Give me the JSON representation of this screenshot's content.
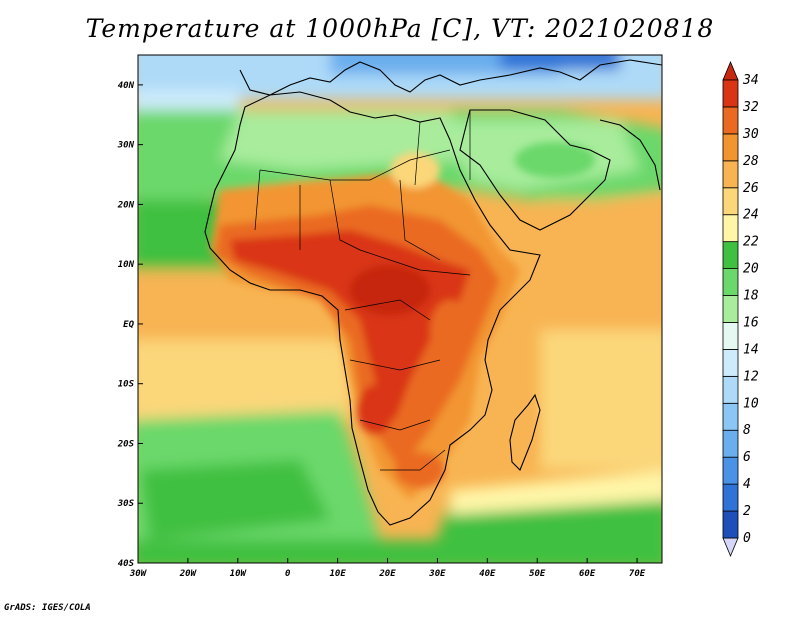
{
  "title": "Temperature at 1000hPa [C], VT: 2021020818",
  "credit": "GrADS: IGES/COLA",
  "map": {
    "lon_range": [
      -30,
      75
    ],
    "lat_range": [
      -40,
      45
    ],
    "lon_ticks": [
      {
        "lon": -30,
        "label": "30W"
      },
      {
        "lon": -20,
        "label": "20W"
      },
      {
        "lon": -10,
        "label": "10W"
      },
      {
        "lon": 0,
        "label": "0"
      },
      {
        "lon": 10,
        "label": "10E"
      },
      {
        "lon": 20,
        "label": "20E"
      },
      {
        "lon": 30,
        "label": "30E"
      },
      {
        "lon": 40,
        "label": "40E"
      },
      {
        "lon": 50,
        "label": "50E"
      },
      {
        "lon": 60,
        "label": "60E"
      },
      {
        "lon": 70,
        "label": "70E"
      }
    ],
    "lat_ticks": [
      {
        "lat": 40,
        "label": "40N"
      },
      {
        "lat": 30,
        "label": "30N"
      },
      {
        "lat": 20,
        "label": "20N"
      },
      {
        "lat": 10,
        "label": "10N"
      },
      {
        "lat": 0,
        "label": "EQ"
      },
      {
        "lat": -10,
        "label": "10S"
      },
      {
        "lat": -20,
        "label": "20S"
      },
      {
        "lat": -30,
        "label": "30S"
      },
      {
        "lat": -40,
        "label": "40S"
      }
    ]
  },
  "colorbar": {
    "units": "C",
    "levels": [
      {
        "value": "0",
        "color": "#1b2a80"
      },
      {
        "value": "2",
        "color": "#1f4fb8"
      },
      {
        "value": "4",
        "color": "#2f73d6"
      },
      {
        "value": "6",
        "color": "#4a92e6"
      },
      {
        "value": "8",
        "color": "#6aaeee"
      },
      {
        "value": "10",
        "color": "#8cc6f4"
      },
      {
        "value": "12",
        "color": "#aedaf8"
      },
      {
        "value": "14",
        "color": "#cdebfb"
      },
      {
        "value": "16",
        "color": "#e6f8f2"
      },
      {
        "value": "18",
        "color": "#a8ec9c"
      },
      {
        "value": "20",
        "color": "#6ad86a"
      },
      {
        "value": "22",
        "color": "#3fc040"
      },
      {
        "value": "24",
        "color": "#fff6a8"
      },
      {
        "value": "26",
        "color": "#fbd77a"
      },
      {
        "value": "28",
        "color": "#f8b452"
      },
      {
        "value": "30",
        "color": "#f29530"
      },
      {
        "value": "32",
        "color": "#ea6a22"
      },
      {
        "value": "34",
        "color": "#d93515"
      }
    ],
    "under_color": "#d6d6f8",
    "over_color": "#c62810"
  }
}
